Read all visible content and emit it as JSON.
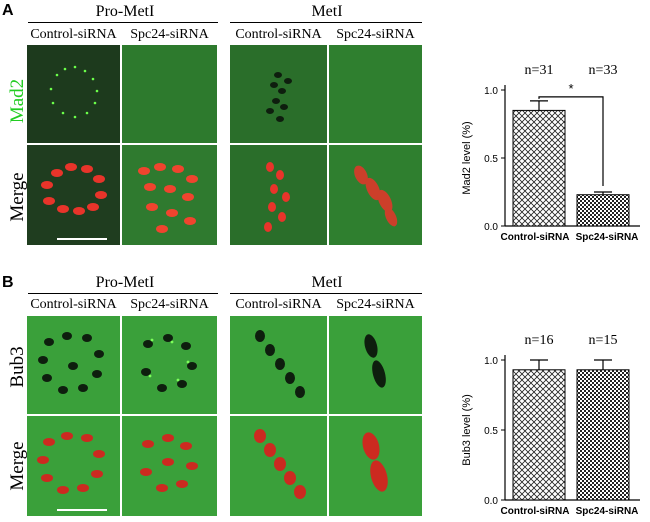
{
  "figure": {
    "panels": [
      {
        "letter": "A",
        "groups": [
          "Pro-MetI",
          "MetI"
        ],
        "columns": [
          "Control-siRNA",
          "Spc24-siRNA",
          "Control-siRNA",
          "Spc24-siRNA"
        ],
        "rows": [
          "Mad2",
          "Merge"
        ],
        "row_colors": [
          "#22cc22",
          "#000000"
        ]
      },
      {
        "letter": "B",
        "groups": [
          "Pro-MetI",
          "MetI"
        ],
        "columns": [
          "Control-siRNA",
          "Spc24-siRNA",
          "Control-siRNA",
          "Spc24-siRNA"
        ],
        "rows": [
          "Bub3",
          "Merge"
        ],
        "row_colors": [
          "#22cc22",
          "#000000"
        ]
      }
    ]
  },
  "colors": {
    "stain_green": "#2f8a2f",
    "chromosome_red": "#e8342a",
    "signal_green": "#7dff5a"
  },
  "chart_data": [
    {
      "type": "bar",
      "categories": [
        "Control-siRNA",
        "Spc24-siRNA"
      ],
      "values": [
        0.85,
        0.23
      ],
      "errors": [
        0.07,
        0.02
      ],
      "annotations": [
        "n=31",
        "n=33"
      ],
      "significance": "*",
      "ylabel": "Mad2 level (%)",
      "ylim": [
        0,
        1.0
      ],
      "yticks": [
        "0.0",
        "0.5",
        "1.0"
      ],
      "fill_patterns": [
        "crosshatch",
        "checker"
      ]
    },
    {
      "type": "bar",
      "categories": [
        "Control-siRNA",
        "Spc24-siRNA"
      ],
      "values": [
        0.93,
        0.93
      ],
      "errors": [
        0.07,
        0.07
      ],
      "annotations": [
        "n=16",
        "n=15"
      ],
      "ylabel": "Bub3 level (%)",
      "ylim": [
        0,
        1.0
      ],
      "yticks": [
        "0.0",
        "0.5",
        "1.0"
      ],
      "fill_patterns": [
        "crosshatch",
        "checker"
      ]
    }
  ]
}
